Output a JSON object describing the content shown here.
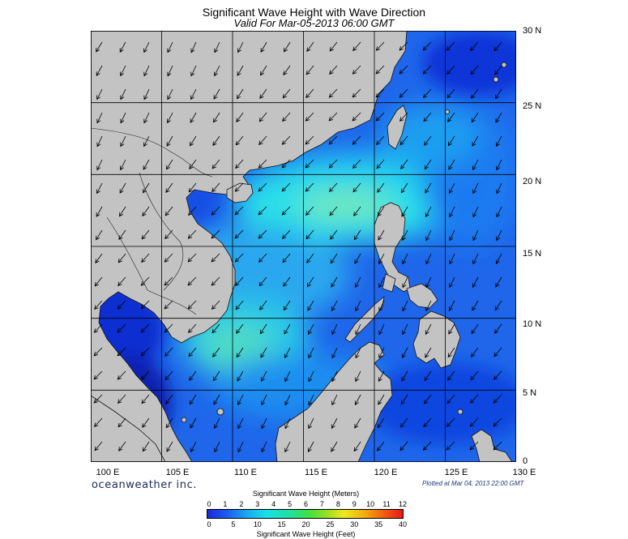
{
  "title": "Significant Wave Height with Wave Direction",
  "valid": "Valid For Mar-05-2013 06:00 GMT",
  "lat_labels": [
    "30 N",
    "25 N",
    "20 N",
    "15 N",
    "10 N",
    "5 N",
    "0"
  ],
  "lon_labels": [
    "100 E",
    "105 E",
    "110 E",
    "115 E",
    "120 E",
    "125 E",
    "130 E"
  ],
  "brand": "oceanweather inc.",
  "plotted": "Plotted at Mar 04, 2013 22:00 GMT",
  "colorbar": {
    "title_m": "Significant Wave Height (Meters)",
    "title_f": "Significant Wave Height (Feet)",
    "meters": [
      "0",
      "1",
      "2",
      "3",
      "4",
      "5",
      "6",
      "7",
      "8",
      "9",
      "10",
      "11",
      "12"
    ],
    "feet": [
      "0",
      "5",
      "10",
      "15",
      "20",
      "25",
      "30",
      "35",
      "40"
    ]
  },
  "colors": {
    "land": "#c3c3c3",
    "sea_base": "#1d63e8",
    "deep": "#0a1fb0",
    "high": "#18d8e6",
    "peak": "#7ee7b0"
  }
}
